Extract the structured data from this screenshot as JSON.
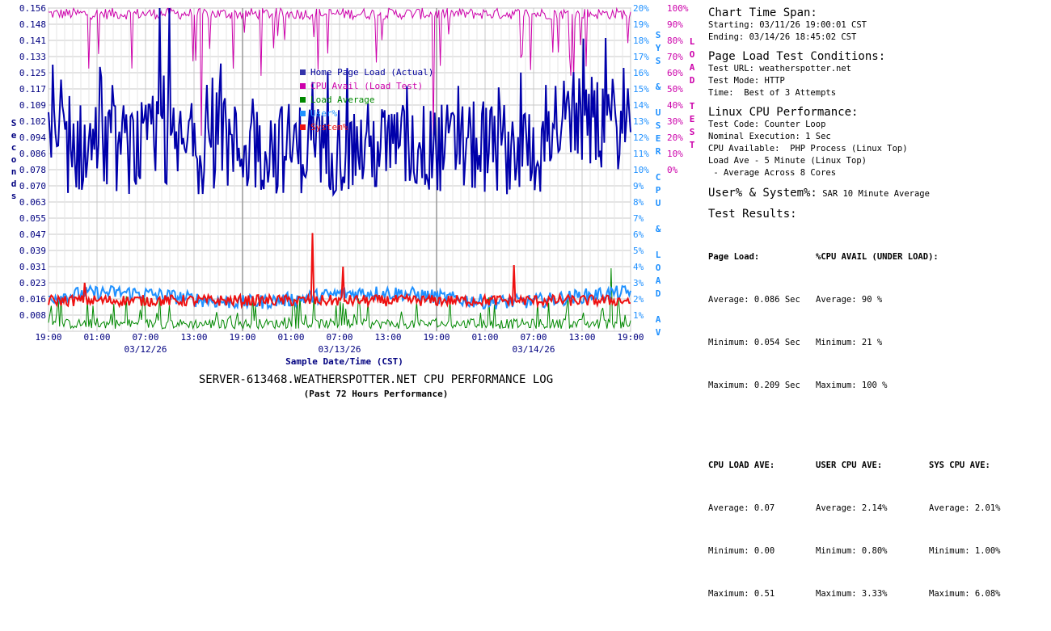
{
  "chart_data": {
    "type": "line",
    "title": "SERVER-613468.WEATHERSPOTTER.NET CPU PERFORMANCE LOG",
    "subtitle": "(Past 72 Hours Performance)",
    "xlabel": "Sample Date/Time (CST)",
    "ylabel_left": "Seconds",
    "ylabel_mid": "SYS & USER CPU & LOAD AV",
    "ylabel_right": "LOAD TEST",
    "x_ticks": [
      "19:00",
      "01:00",
      "07:00",
      "13:00",
      "19:00",
      "01:00",
      "07:00",
      "13:00",
      "19:00",
      "01:00",
      "07:00",
      "13:00",
      "19:00"
    ],
    "date_labels": [
      "03/12/26",
      "03/13/26",
      "03/14/26"
    ],
    "y_left_ticks": [
      "0.156",
      "0.148",
      "0.141",
      "0.133",
      "0.125",
      "0.117",
      "0.109",
      "0.102",
      "0.094",
      "0.086",
      "0.078",
      "0.070",
      "0.063",
      "0.055",
      "0.047",
      "0.039",
      "0.031",
      "0.023",
      "0.016",
      "0.008"
    ],
    "y_mid_ticks": [
      "20%",
      "19%",
      "18%",
      "17%",
      "16%",
      "15%",
      "14%",
      "13%",
      "12%",
      "11%",
      "10%",
      "9%",
      "8%",
      "7%",
      "6%",
      "5%",
      "4%",
      "3%",
      "2%",
      "1%"
    ],
    "y_right_ticks": [
      "100%",
      "90%",
      "80%",
      "70%",
      "60%",
      "50%",
      "40%",
      "30%",
      "20%",
      "10%",
      "0%"
    ],
    "ylim_left": [
      0,
      0.156
    ],
    "ylim_mid": [
      0,
      20
    ],
    "ylim_right": [
      0,
      100
    ],
    "grid": true,
    "legend": [
      {
        "name": "Home Page Load (Actual)",
        "color": "#000099",
        "swatch": "#3333aa"
      },
      {
        "name": "CPU Avail (Load Test)",
        "color": "#cc00aa",
        "swatch": "#cc00aa"
      },
      {
        "name": "Load Average",
        "color": "#008800",
        "swatch": "#008800"
      },
      {
        "name": "User%",
        "color": "#1e90ff",
        "swatch": "#1e90ff"
      },
      {
        "name": "System%",
        "color": "#ee1111",
        "swatch": "#ee1111"
      }
    ],
    "series": [
      {
        "name": "Home Page Load (Actual)",
        "axis": "left",
        "summary": {
          "average": 0.086,
          "minimum": 0.054,
          "maximum": 0.209
        }
      },
      {
        "name": "CPU Avail (Load Test)",
        "axis": "right",
        "summary": {
          "average": 90,
          "minimum": 21,
          "maximum": 100
        }
      },
      {
        "name": "Load Average",
        "axis": "mid_load",
        "summary": {
          "average": 0.07,
          "minimum": 0.0,
          "maximum": 0.51
        }
      },
      {
        "name": "User%",
        "axis": "mid",
        "summary": {
          "average": 2.14,
          "minimum": 0.8,
          "maximum": 3.33
        }
      },
      {
        "name": "System%",
        "axis": "mid",
        "summary": {
          "average": 2.01,
          "minimum": 1.0,
          "maximum": 6.08
        }
      }
    ]
  },
  "side": {
    "span_title": "Chart Time Span:",
    "span_start": "Starting: 03/11/26 19:00:01 CST",
    "span_end": "Ending: 03/14/26 18:45:02 CST",
    "cond_title": "Page Load Test Conditions:",
    "cond_url": "Test URL: weatherspotter.net",
    "cond_mode": "Test Mode: HTTP",
    "cond_time": "Time:  Best of 3 Attempts",
    "cpu_title": "Linux CPU Performance:",
    "cpu_code": "Test Code: Counter Loop",
    "cpu_exec": "Nominal Execution: 1 Sec",
    "cpu_avail": "CPU Available:  PHP Process (Linux Top)",
    "cpu_load": "Load Ave - 5 Minute (Linux Top)",
    "cpu_cores": " - Average Across 8 Cores",
    "usr_title": "User% & System%:",
    "usr_desc": "SAR 10 Minute Average",
    "res_title": "Test Results:",
    "page_load_h": "Page Load:",
    "page_load_avg": "Average: 0.086 Sec",
    "page_load_min": "Minimum: 0.054 Sec",
    "page_load_max": "Maximum: 0.209 Sec",
    "cpu_avail_h": "%CPU AVAIL (UNDER LOAD):",
    "cpu_avail_avg": "Average: 90 %",
    "cpu_avail_min": "Minimum: 21 %",
    "cpu_avail_max": "Maximum: 100 %",
    "load_h": "CPU LOAD AVE:",
    "load_avg": "Average: 0.07",
    "load_min": "Minimum: 0.00",
    "load_max": "Maximum: 0.51",
    "user_h": "USER CPU AVE:",
    "user_avg": "Average: 2.14%",
    "user_min": "Minimum: 0.80%",
    "user_max": "Maximum: 3.33%",
    "sys_h": "SYS CPU AVE:",
    "sys_avg": "Average: 2.01%",
    "sys_min": "Minimum: 1.00%",
    "sys_max": "Maximum: 6.08%"
  }
}
